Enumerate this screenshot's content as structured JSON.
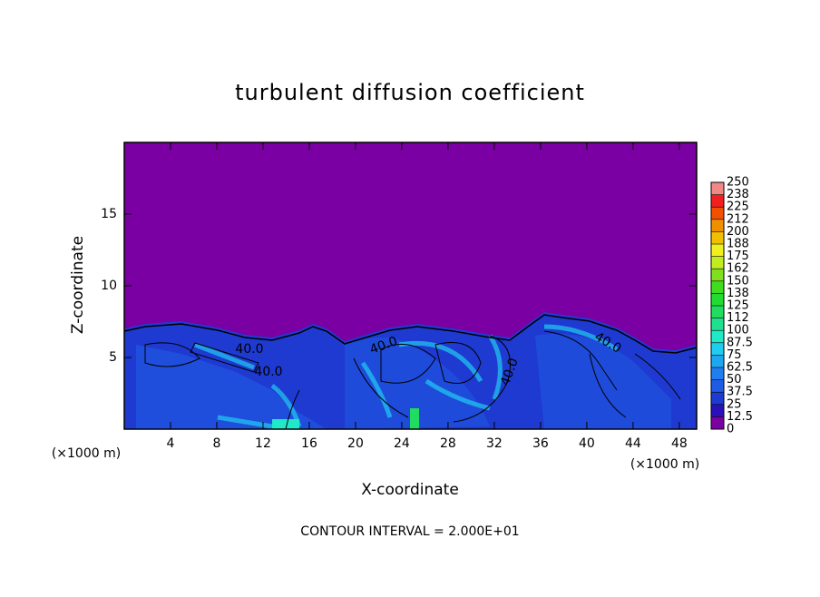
{
  "chart_data": {
    "type": "contour",
    "title": "turbulent diffusion coefficient",
    "xlabel": "X-coordinate",
    "ylabel": "Z-coordinate",
    "x_unit": "(×1000 m)",
    "footnote": "CONTOUR INTERVAL = 2.000E+01",
    "xlim": [
      0,
      49.5
    ],
    "ylim": [
      0,
      20
    ],
    "xticks": [
      4,
      8,
      12,
      16,
      20,
      24,
      28,
      32,
      36,
      40,
      44,
      48
    ],
    "yticks": [
      5,
      10,
      15
    ],
    "contour_labels": [
      "40.0",
      "40.0",
      "40.0",
      "40.0",
      "40.0"
    ],
    "colorbar": {
      "levels": [
        0,
        12.5,
        25,
        37.5,
        50,
        62.5,
        75,
        87.5,
        100,
        {
          "value": 112.5,
          "label": "112"
        },
        125,
        {
          "value": 137.5,
          "label": "138"
        },
        150,
        {
          "value": 162.5,
          "label": "162"
        },
        175,
        {
          "value": 187.5,
          "label": "188"
        },
        200,
        {
          "value": 212.5,
          "label": "212"
        },
        225,
        {
          "value": 237.5,
          "label": "238"
        },
        250
      ],
      "colors": [
        "#7b00a3",
        "#2a10b8",
        "#1f3ad0",
        "#1f5ce6",
        "#1f7ff0",
        "#1fa6f0",
        "#20ccf0",
        "#20e8c8",
        "#20e090",
        "#20dc60",
        "#20dc30",
        "#40dc20",
        "#80e020",
        "#c0ec20",
        "#f0f020",
        "#f0c000",
        "#f09000",
        "#f05000",
        "#f02020",
        "#f08888"
      ]
    }
  }
}
